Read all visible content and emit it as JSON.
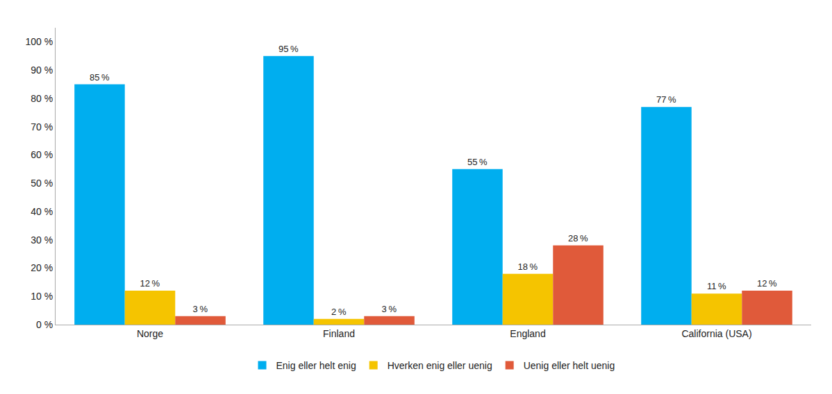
{
  "chart_data": {
    "type": "bar",
    "categories": [
      "Norge",
      "Finland",
      "England",
      "California (USA)"
    ],
    "series": [
      {
        "name": "Enig eller helt enig",
        "color": "#00AEEF",
        "values": [
          85,
          95,
          55,
          77
        ],
        "value_labels": [
          "85 %",
          "95 %",
          "55 %",
          "77 %"
        ]
      },
      {
        "name": "Hverken enig eller uenig",
        "color": "#F5C400",
        "values": [
          12,
          2,
          18,
          11
        ],
        "value_labels": [
          "12 %",
          "2 %",
          "18 %",
          "11 %"
        ]
      },
      {
        "name": "Uenig eller helt uenig",
        "color": "#E05A3A",
        "values": [
          3,
          3,
          28,
          12
        ],
        "value_labels": [
          "3 %",
          "3 %",
          "28 %",
          "12 %"
        ]
      }
    ],
    "ylim": [
      0,
      105
    ],
    "yticks": [
      {
        "value": 0,
        "label": "0 %"
      },
      {
        "value": 10,
        "label": "10 %"
      },
      {
        "value": 20,
        "label": "20 %"
      },
      {
        "value": 30,
        "label": "30 %"
      },
      {
        "value": 40,
        "label": "40 %"
      },
      {
        "value": 50,
        "label": "50 %"
      },
      {
        "value": 60,
        "label": "60 %"
      },
      {
        "value": 70,
        "label": "70 %"
      },
      {
        "value": 80,
        "label": "80 %"
      },
      {
        "value": 90,
        "label": "90 %"
      },
      {
        "value": 100,
        "label": "100 %"
      }
    ],
    "grid": false,
    "legend": "bottom",
    "data_labels": true
  }
}
